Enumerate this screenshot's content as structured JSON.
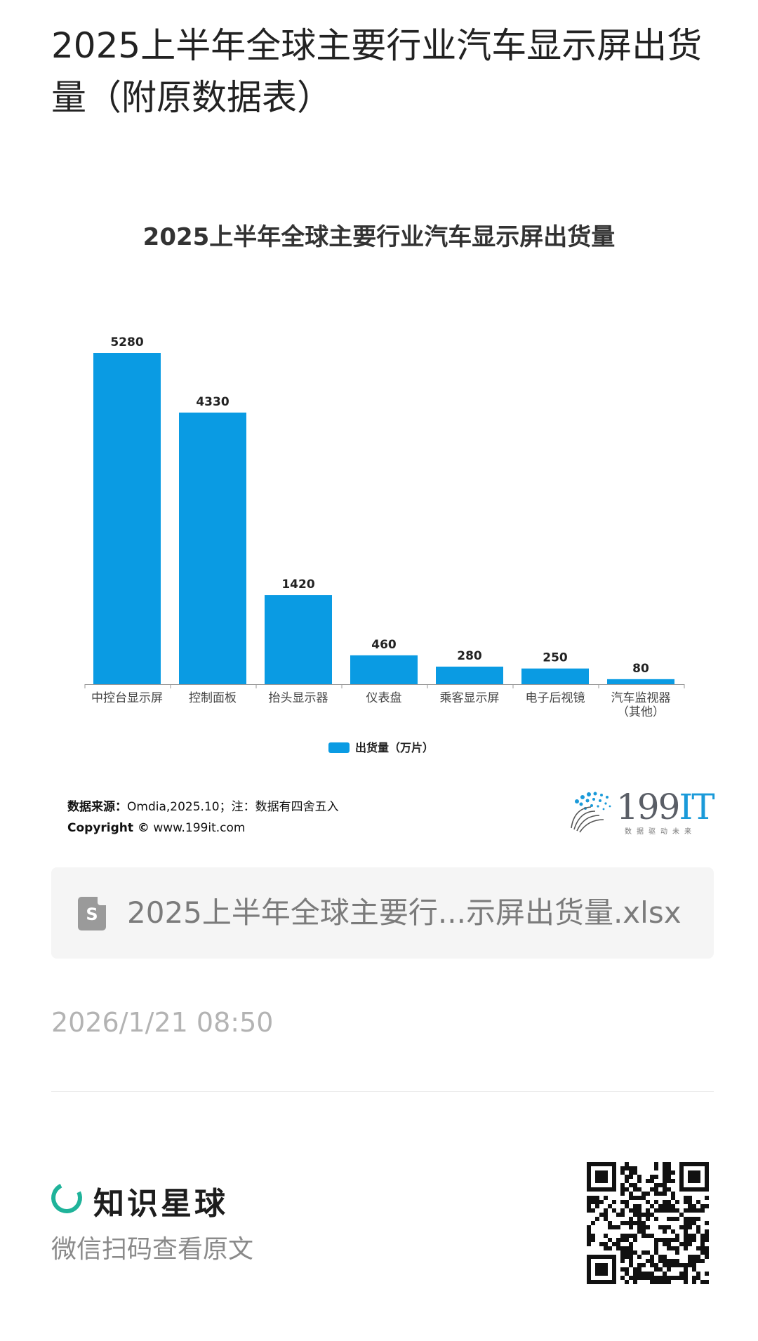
{
  "post": {
    "title": "2025上半年全球主要行业汽车显示屏出货量（附原数据表）"
  },
  "chart_data": {
    "type": "bar",
    "title": "2025上半年全球主要行业汽车显示屏出货量",
    "categories": [
      "中控台显示屏",
      "控制面板",
      "抬头显示器",
      "仪表盘",
      "乘客显示屏",
      "电子后视镜",
      "汽车监视器\n（其他）"
    ],
    "series": [
      {
        "name": "出货量（万片）",
        "values": [
          5280,
          4330,
          1420,
          460,
          280,
          250,
          80
        ],
        "color": "#0a9be3"
      }
    ],
    "xlabel": "",
    "ylabel": "",
    "ylim": [
      0,
      5280
    ],
    "grid": false,
    "legend": "bottom-center",
    "data_labels": true
  },
  "source": {
    "label": "数据来源：",
    "text": "Omdia,2025.10；注：数据有四舍五入",
    "copyright_label": "Copyright ©",
    "copyright_text": " www.199it.com"
  },
  "logo": {
    "num": "199",
    "it": "IT",
    "tagline": "数据驱动未来"
  },
  "file": {
    "icon_letter": "S",
    "name": "2025上半年全球主要行...示屏出货量.xlsx"
  },
  "timestamp": "2026/1/21 08:50",
  "footer": {
    "brand": "知识星球",
    "cta": "微信扫码查看原文"
  },
  "colors": {
    "bar": "#0a9be3",
    "brand_green": "#1fb39a"
  }
}
